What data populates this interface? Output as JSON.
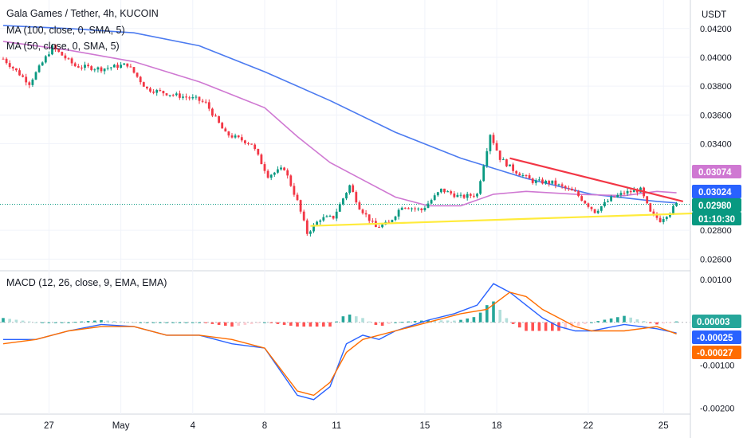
{
  "header": {
    "symbol_line": "Gala Games / Tether, 4h, KUCOIN",
    "ma100_label": "MA (100, close, 0, SMA, 5)",
    "ma50_label": "MA (50, close, 0, SMA, 5)",
    "macd_label": "MACD (12, 26, close, 9, EMA, EMA)"
  },
  "chart_data": [
    {
      "type": "candlestick",
      "title": "Gala Games / Tether, 4h, KUCOIN",
      "y_unit_label": "USDT",
      "y_ticks": [
        "0.04200",
        "0.04000",
        "0.03800",
        "0.03600",
        "0.03400",
        "0.02800",
        "0.02600"
      ],
      "ylim": [
        0.0253,
        0.0437
      ],
      "x_ticks": [
        "27",
        "May",
        "4",
        "8",
        "11",
        "15",
        "18",
        "22",
        "25"
      ],
      "x_tick_bars": [
        14,
        36,
        58,
        80,
        102,
        129,
        151,
        179,
        202
      ],
      "bar_count": 215,
      "ma_series": [
        {
          "name": "MA (100, close, 0, SMA, 5)",
          "color": "#4c7bf0",
          "points": [
            [
              0,
              0.0422
            ],
            [
              20,
              0.042
            ],
            [
              40,
              0.0417
            ],
            [
              60,
              0.0408
            ],
            [
              80,
              0.039
            ],
            [
              100,
              0.037
            ],
            [
              120,
              0.0348
            ],
            [
              140,
              0.033
            ],
            [
              160,
              0.0316
            ],
            [
              180,
              0.0305
            ],
            [
              200,
              0.03
            ],
            [
              206,
              0.0299
            ]
          ]
        },
        {
          "name": "MA (50, close, 0, SMA, 5)",
          "color": "#cf78d2",
          "points": [
            [
              0,
              0.0411
            ],
            [
              20,
              0.0405
            ],
            [
              40,
              0.0397
            ],
            [
              60,
              0.0383
            ],
            [
              80,
              0.0365
            ],
            [
              90,
              0.0345
            ],
            [
              100,
              0.0327
            ],
            [
              110,
              0.0315
            ],
            [
              120,
              0.0303
            ],
            [
              130,
              0.0297
            ],
            [
              140,
              0.0297
            ],
            [
              150,
              0.0305
            ],
            [
              160,
              0.0307
            ],
            [
              175,
              0.0305
            ],
            [
              190,
              0.0304
            ],
            [
              200,
              0.0307
            ],
            [
              206,
              0.0306
            ]
          ]
        }
      ],
      "trendlines": [
        {
          "name": "resistance",
          "color": "#f23645",
          "from": [
            155,
            0.033
          ],
          "to": [
            208,
            0.03
          ]
        },
        {
          "name": "support",
          "color": "#ffeb3b",
          "from": [
            94,
            0.0283
          ],
          "to": [
            215,
            0.0292
          ]
        }
      ],
      "last_price_line": 0.0298,
      "price_badges": [
        {
          "value": "0.03074",
          "color": "#cf78d2"
        },
        {
          "value": "0.03024",
          "color": "#2962ff"
        },
        {
          "value": "0.02980",
          "color": "#089981"
        },
        {
          "value": "01:10:30",
          "color": "#089981"
        }
      ],
      "close_path": [
        [
          0,
          0.0399
        ],
        [
          8,
          0.0382
        ],
        [
          15,
          0.0407
        ],
        [
          22,
          0.0394
        ],
        [
          30,
          0.0392
        ],
        [
          38,
          0.0395
        ],
        [
          44,
          0.0378
        ],
        [
          52,
          0.0374
        ],
        [
          59,
          0.0371
        ],
        [
          62,
          0.0368
        ],
        [
          68,
          0.0347
        ],
        [
          76,
          0.034
        ],
        [
          81,
          0.0318
        ],
        [
          86,
          0.0323
        ],
        [
          90,
          0.03
        ],
        [
          93,
          0.0278
        ],
        [
          97,
          0.0288
        ],
        [
          101,
          0.0289
        ],
        [
          106,
          0.0311
        ],
        [
          109,
          0.0296
        ],
        [
          114,
          0.0282
        ],
        [
          118,
          0.0285
        ],
        [
          122,
          0.0297
        ],
        [
          128,
          0.0294
        ],
        [
          134,
          0.0308
        ],
        [
          140,
          0.0303
        ],
        [
          145,
          0.0305
        ],
        [
          149,
          0.0347
        ],
        [
          152,
          0.033
        ],
        [
          156,
          0.0322
        ],
        [
          162,
          0.0314
        ],
        [
          168,
          0.0313
        ],
        [
          175,
          0.0306
        ],
        [
          181,
          0.0293
        ],
        [
          186,
          0.0302
        ],
        [
          190,
          0.0306
        ],
        [
          195,
          0.0308
        ],
        [
          198,
          0.0292
        ],
        [
          201,
          0.0287
        ],
        [
          204,
          0.0293
        ],
        [
          206,
          0.0298
        ]
      ]
    },
    {
      "type": "macd",
      "title": "MACD (12, 26, close, 9, EMA, EMA)",
      "y_ticks": [
        "0.00100",
        "-0.00100",
        "-0.00200"
      ],
      "ylim": [
        -0.0021,
        0.0012
      ],
      "series": [
        {
          "name": "MACD",
          "color": "#2962ff",
          "points": [
            [
              0,
              -0.0004
            ],
            [
              10,
              -0.0004
            ],
            [
              20,
              -0.0002
            ],
            [
              30,
              -5e-05
            ],
            [
              40,
              -0.0001
            ],
            [
              50,
              -0.0003
            ],
            [
              60,
              -0.0003
            ],
            [
              70,
              -0.0005
            ],
            [
              80,
              -0.0006
            ],
            [
              90,
              -0.0017
            ],
            [
              95,
              -0.0018
            ],
            [
              100,
              -0.0015
            ],
            [
              105,
              -0.0005
            ],
            [
              110,
              -0.0003
            ],
            [
              115,
              -0.0004
            ],
            [
              120,
              -0.0002
            ],
            [
              130,
              5e-05
            ],
            [
              138,
              0.0002
            ],
            [
              145,
              0.0004
            ],
            [
              150,
              0.0009
            ],
            [
              155,
              0.0007
            ],
            [
              160,
              0.0004
            ],
            [
              165,
              0.0001
            ],
            [
              170,
              -0.0001
            ],
            [
              175,
              -0.0002
            ],
            [
              180,
              -0.0002
            ],
            [
              190,
              -5e-05
            ],
            [
              195,
              -0.0001
            ],
            [
              200,
              -0.00015
            ],
            [
              206,
              -0.00025
            ]
          ]
        },
        {
          "name": "Signal",
          "color": "#ff6d00",
          "points": [
            [
              0,
              -0.0005
            ],
            [
              10,
              -0.0004
            ],
            [
              20,
              -0.0002
            ],
            [
              30,
              -0.0001
            ],
            [
              40,
              -0.0001
            ],
            [
              50,
              -0.0003
            ],
            [
              60,
              -0.0003
            ],
            [
              70,
              -0.0004
            ],
            [
              80,
              -0.0006
            ],
            [
              90,
              -0.0016
            ],
            [
              95,
              -0.0017
            ],
            [
              100,
              -0.0014
            ],
            [
              105,
              -0.0007
            ],
            [
              110,
              -0.0004
            ],
            [
              120,
              -0.0002
            ],
            [
              130,
              0.0
            ],
            [
              140,
              0.0002
            ],
            [
              148,
              0.0003
            ],
            [
              155,
              0.0007
            ],
            [
              160,
              0.0006
            ],
            [
              165,
              0.0003
            ],
            [
              170,
              0.0001
            ],
            [
              175,
              -0.0001
            ],
            [
              180,
              -0.0002
            ],
            [
              190,
              -0.0002
            ],
            [
              200,
              -0.0001
            ],
            [
              206,
              -0.00027
            ]
          ]
        }
      ],
      "value_badges": [
        {
          "value": "0.00003",
          "color": "#26a69a"
        },
        {
          "value": "-0.00025",
          "color": "#2962ff"
        },
        {
          "value": "-0.00027",
          "color": "#ff6d00"
        }
      ]
    }
  ]
}
